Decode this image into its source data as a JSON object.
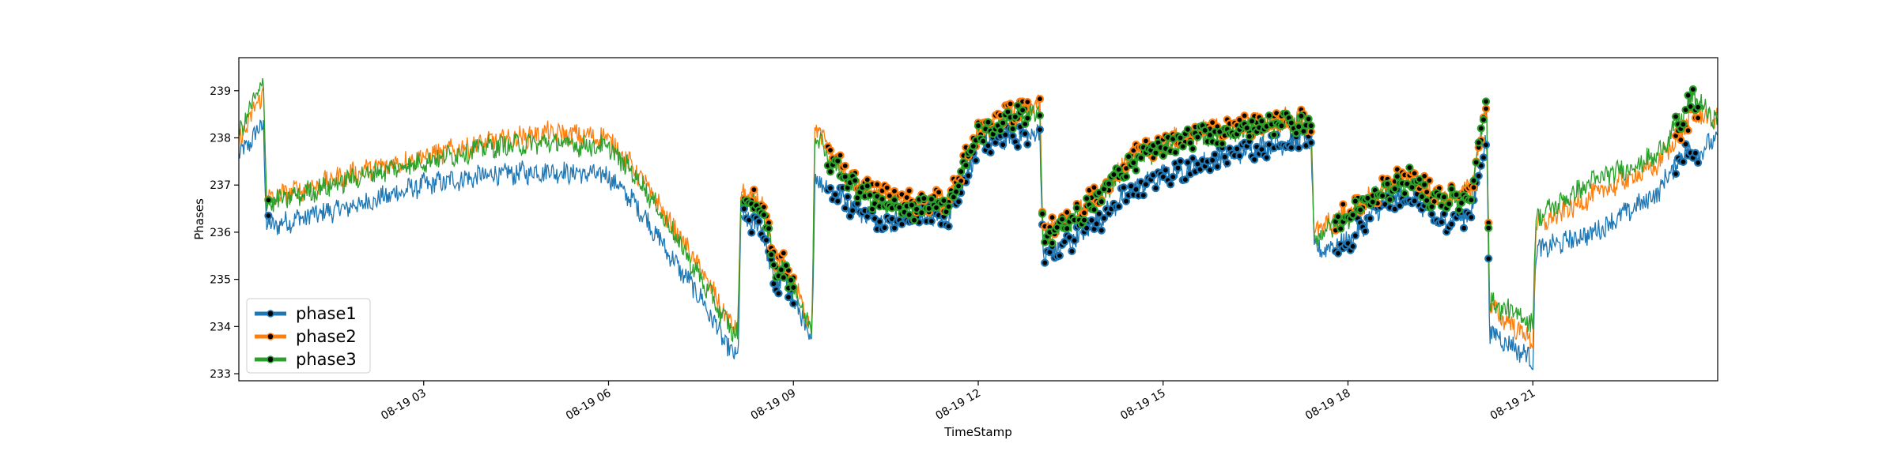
{
  "chart_data": {
    "type": "line",
    "title": "",
    "xlabel": "TimeStamp",
    "ylabel": "Phases",
    "x_unit": "hours since 08-19 00:00",
    "xlim": [
      0,
      24.0
    ],
    "ylim": [
      232.85,
      239.7
    ],
    "x_ticks": [
      {
        "x": 3,
        "label": "08-19 03"
      },
      {
        "x": 6,
        "label": "08-19 06"
      },
      {
        "x": 9,
        "label": "08-19 09"
      },
      {
        "x": 12,
        "label": "08-19 12"
      },
      {
        "x": 15,
        "label": "08-19 15"
      },
      {
        "x": 18,
        "label": "08-19 18"
      },
      {
        "x": 21,
        "label": "08-19 21"
      }
    ],
    "y_ticks": [
      233,
      234,
      235,
      236,
      237,
      238,
      239
    ],
    "grid": false,
    "legend": {
      "position": "lower-left"
    },
    "marker_color": "#000000",
    "x": [
      0,
      0.4,
      0.45,
      1.0,
      2.0,
      3.0,
      4.0,
      5.0,
      6.0,
      6.5,
      7.0,
      7.5,
      8.0,
      8.1,
      8.15,
      8.5,
      8.7,
      8.8,
      9.0,
      9.3,
      9.35,
      9.6,
      10.0,
      10.5,
      11.0,
      11.5,
      12.0,
      12.5,
      13.0,
      13.05,
      13.5,
      14.0,
      14.5,
      15.0,
      15.5,
      16.0,
      16.5,
      17.0,
      17.4,
      17.45,
      18.0,
      18.5,
      19.0,
      19.5,
      20.0,
      20.25,
      20.3,
      21.0,
      21.05,
      22.0,
      23.0,
      23.5,
      23.6,
      24.0
    ],
    "series": [
      {
        "name": "phase1",
        "color": "#1f77b4",
        "values": [
          237.6,
          238.3,
          236.1,
          236.3,
          236.6,
          237.0,
          237.2,
          237.3,
          237.2,
          236.5,
          235.5,
          234.6,
          233.4,
          233.4,
          236.3,
          236.1,
          234.8,
          235.0,
          234.6,
          233.6,
          237.2,
          236.9,
          236.5,
          236.2,
          236.4,
          236.3,
          237.8,
          238.0,
          238.1,
          235.5,
          235.8,
          236.3,
          236.9,
          237.2,
          237.4,
          237.6,
          237.8,
          237.9,
          238.0,
          235.6,
          235.8,
          236.5,
          236.8,
          236.2,
          236.4,
          238.0,
          233.9,
          233.3,
          235.6,
          236.0,
          236.8,
          237.8,
          237.6,
          238.0
        ]
      },
      {
        "name": "phase2",
        "color": "#ff7f0e",
        "values": [
          237.9,
          239.0,
          236.7,
          236.9,
          237.3,
          237.6,
          237.9,
          238.1,
          238.0,
          237.2,
          236.2,
          235.2,
          234.0,
          234.0,
          236.8,
          236.6,
          235.3,
          235.4,
          234.9,
          234.0,
          238.3,
          237.7,
          237.0,
          236.8,
          236.6,
          236.7,
          238.1,
          238.5,
          238.7,
          236.0,
          236.3,
          236.9,
          237.6,
          237.9,
          238.1,
          238.2,
          238.3,
          238.4,
          238.3,
          236.0,
          236.4,
          236.9,
          237.2,
          236.7,
          236.9,
          238.7,
          234.4,
          233.7,
          236.1,
          236.8,
          237.4,
          238.3,
          238.5,
          238.4
        ]
      },
      {
        "name": "phase3",
        "color": "#2ca02c",
        "values": [
          238.1,
          239.2,
          236.6,
          236.8,
          237.2,
          237.5,
          237.8,
          237.9,
          237.8,
          237.1,
          236.1,
          235.0,
          233.9,
          233.9,
          236.7,
          236.5,
          235.2,
          235.3,
          234.8,
          233.9,
          238.2,
          237.5,
          236.9,
          236.6,
          236.5,
          236.6,
          238.0,
          238.4,
          238.5,
          235.9,
          236.2,
          236.8,
          237.5,
          237.8,
          238.0,
          238.1,
          238.2,
          238.3,
          238.2,
          235.9,
          236.3,
          236.8,
          237.1,
          236.6,
          236.8,
          238.8,
          234.5,
          234.1,
          236.3,
          237.1,
          237.6,
          238.6,
          238.9,
          238.3
        ]
      }
    ],
    "marker_ranges": [
      [
        0.45,
        0.5
      ],
      [
        8.2,
        9.0
      ],
      [
        9.55,
        12.8
      ],
      [
        13.0,
        17.4
      ],
      [
        17.8,
        20.3
      ],
      [
        23.3,
        23.7
      ]
    ]
  }
}
